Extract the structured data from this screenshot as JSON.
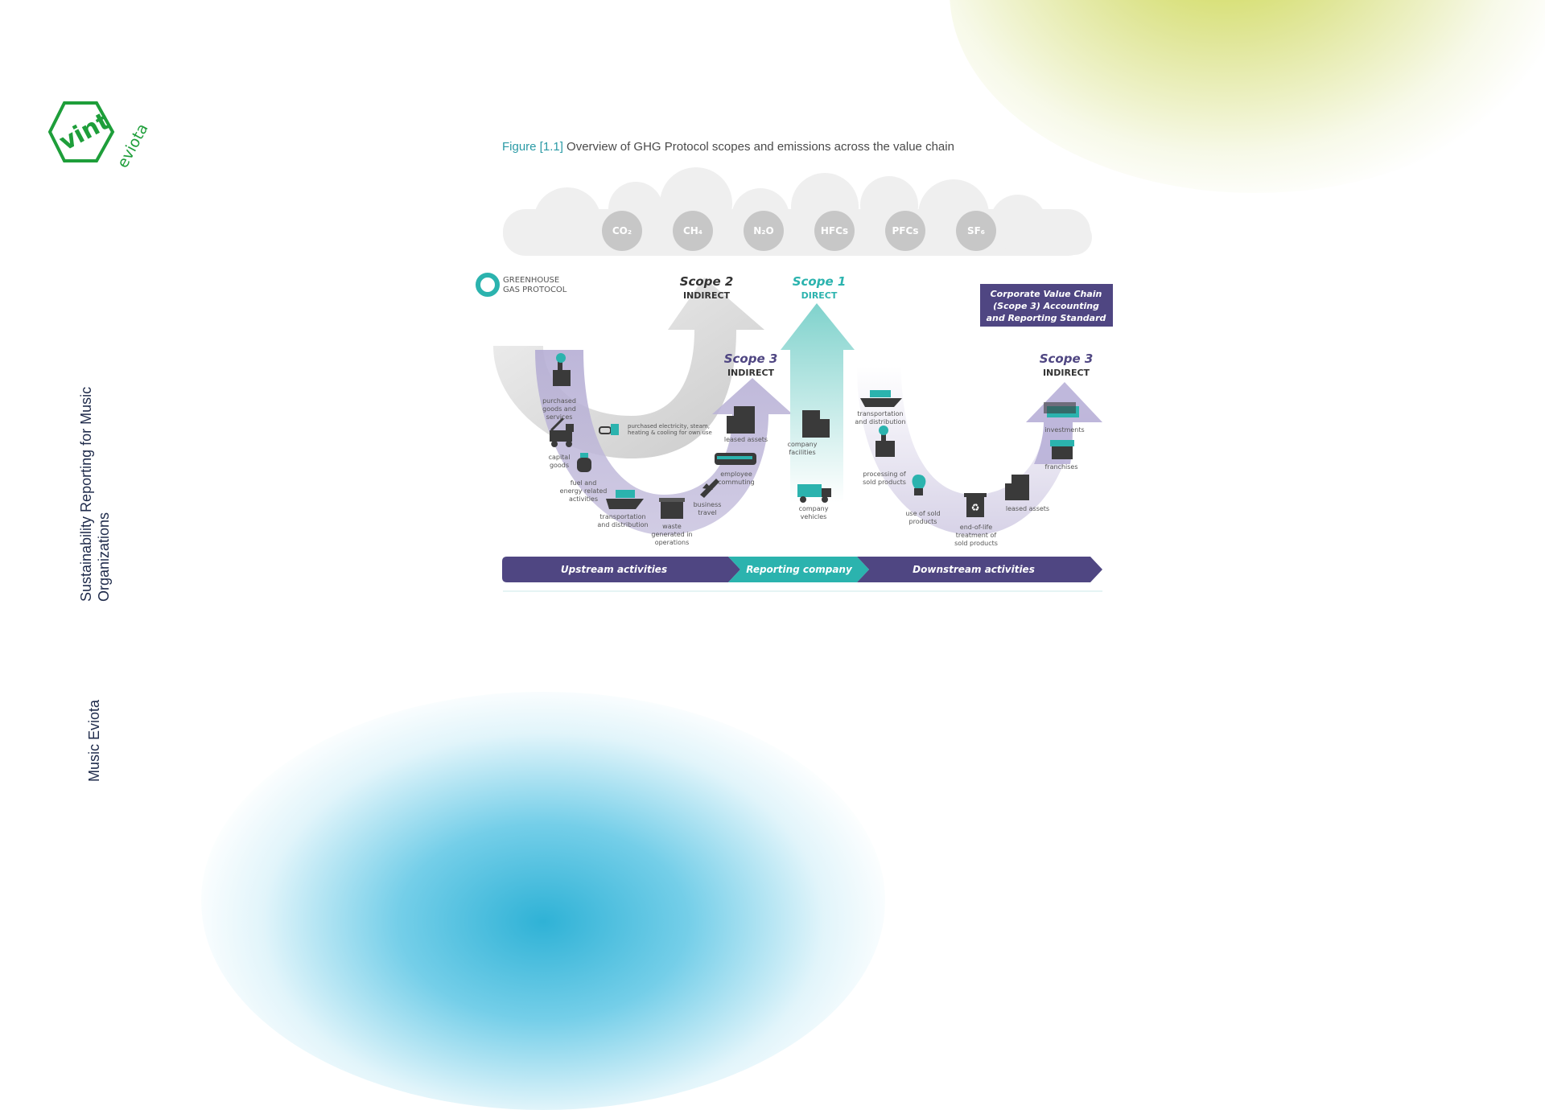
{
  "brand": {
    "logo_word": "vint",
    "logo_script": "eviota"
  },
  "side": {
    "title_line1": "Sustainability Reporting for Music",
    "title_line2": "Organizations",
    "footer": "Music Eviota"
  },
  "figure": {
    "number": "Figure [1.1]",
    "title": "Overview of GHG Protocol scopes and emissions across the value chain",
    "gases": [
      "CO₂",
      "CH₄",
      "N₂O",
      "HFCs",
      "PFCs",
      "SF₆"
    ],
    "protocol_line1": "GREENHOUSE",
    "protocol_line2": "GAS PROTOCOL",
    "scope2": {
      "name": "Scope 2",
      "type": "INDIRECT"
    },
    "scope1": {
      "name": "Scope 1",
      "type": "DIRECT"
    },
    "scope3_up": {
      "name": "Scope 3",
      "type": "INDIRECT"
    },
    "scope3_down": {
      "name": "Scope 3",
      "type": "INDIRECT"
    },
    "standard_box": [
      "Corporate Value Chain",
      "(Scope 3) Accounting",
      "and Reporting Standard"
    ],
    "scope2_item": [
      "purchased electricity, steam,",
      "heating & cooling for own use"
    ],
    "upstream_items": {
      "purchased_goods": [
        "purchased",
        "goods and",
        "services"
      ],
      "capital_goods": [
        "capital",
        "goods"
      ],
      "fuel_energy": [
        "fuel and",
        "energy related",
        "activities"
      ],
      "transport": [
        "transportation",
        "and distribution"
      ],
      "waste": [
        "waste",
        "generated in",
        "operations"
      ],
      "business_travel": [
        "business",
        "travel"
      ],
      "employee_commuting": [
        "employee",
        "commuting"
      ],
      "leased_assets": [
        "leased assets"
      ]
    },
    "scope1_items": {
      "facilities": [
        "company",
        "facilities"
      ],
      "vehicles": [
        "company",
        "vehicles"
      ]
    },
    "downstream_items": {
      "transport": [
        "transportation",
        "and distribution"
      ],
      "processing": [
        "processing of",
        "sold products"
      ],
      "use": [
        "use of sold",
        "products"
      ],
      "end_of_life": [
        "end-of-life",
        "treatment of",
        "sold products"
      ],
      "leased_assets": [
        "leased assets"
      ],
      "franchises": [
        "franchises"
      ],
      "investments": [
        "investments"
      ]
    },
    "bar": {
      "upstream": "Upstream activities",
      "reporting": "Reporting company",
      "downstream": "Downstream activities"
    }
  },
  "colors": {
    "purple": "#4f4682",
    "teal": "#2bb3ae",
    "gray": "#bdbdbd",
    "text_dark": "#333333",
    "gas_circle": "#c7c7c7",
    "lime_blob": "#cdd84a",
    "cyan_blob": "#2fb2d6"
  }
}
